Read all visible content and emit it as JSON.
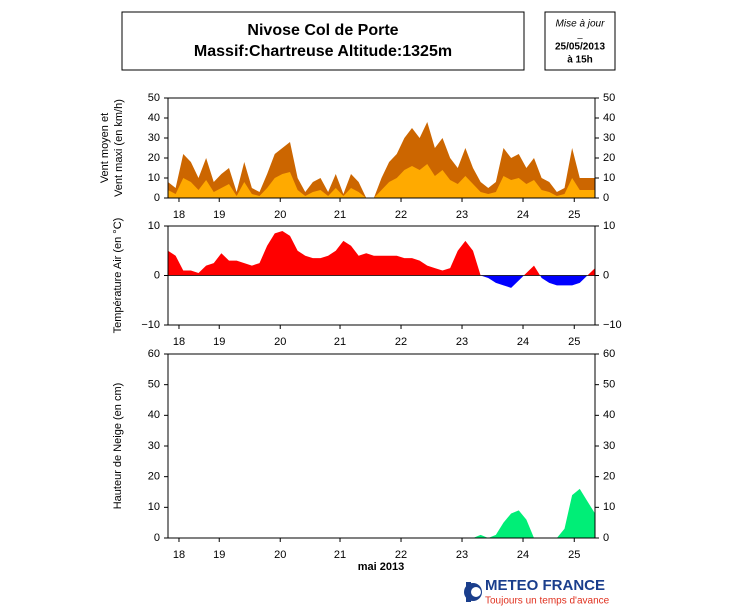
{
  "header": {
    "title": "Nivose Col de Porte",
    "subtitle": "Massif:Chartreuse Altitude:1325m",
    "update_label": "Mise à jour",
    "update_sep": "_",
    "update_date": "25/05/2013",
    "update_hour": "à 15h"
  },
  "x_label": "mai 2013",
  "footer": {
    "brand": "METEO FRANCE",
    "tagline": "Toujours un temps d'avance"
  },
  "chart_data": [
    {
      "type": "area",
      "y_label": [
        "Vent moyen et",
        "Vent maxi (en km/h)"
      ],
      "x": [
        0,
        0.125,
        0.25,
        0.375,
        0.5,
        0.625,
        0.75,
        0.875,
        1,
        1.125,
        1.25,
        1.375,
        1.5,
        1.625,
        1.75,
        1.875,
        2,
        2.125,
        2.25,
        2.375,
        2.5,
        2.625,
        2.75,
        2.875,
        3,
        3.125,
        3.25,
        3.375,
        3.5,
        3.625,
        3.75,
        3.875,
        4,
        4.125,
        4.25,
        4.375,
        4.5,
        4.625,
        4.75,
        4.875,
        5,
        5.125,
        5.25,
        5.375,
        5.5,
        5.625,
        5.75,
        5.875,
        6,
        6.125,
        6.25,
        6.375,
        6.5,
        6.625,
        6.75,
        6.875,
        7
      ],
      "xlim": [
        0,
        7
      ],
      "xticks": [
        {
          "value": 0.18,
          "label": "18"
        },
        {
          "value": 0.84,
          "label": "19"
        },
        {
          "value": 1.84,
          "label": "20"
        },
        {
          "value": 2.82,
          "label": "21"
        },
        {
          "value": 3.82,
          "label": "22"
        },
        {
          "value": 4.82,
          "label": "23"
        },
        {
          "value": 5.82,
          "label": "24"
        },
        {
          "value": 6.66,
          "label": "25"
        }
      ],
      "ylim": [
        0,
        50
      ],
      "yticks": [
        0,
        10,
        20,
        30,
        40,
        50
      ],
      "series": [
        {
          "name": "Vent maxi",
          "color": "#cc6600",
          "values": [
            8,
            5,
            22,
            18,
            10,
            20,
            8,
            12,
            15,
            3,
            18,
            5,
            3,
            12,
            22,
            25,
            28,
            10,
            3,
            8,
            10,
            3,
            12,
            2,
            12,
            8,
            0,
            0,
            10,
            18,
            22,
            30,
            35,
            30,
            38,
            25,
            30,
            20,
            15,
            25,
            15,
            8,
            5,
            8,
            25,
            20,
            22,
            15,
            20,
            10,
            8,
            3,
            5,
            25,
            10,
            10,
            10
          ]
        },
        {
          "name": "Vent moyen",
          "color": "#ffaa00",
          "values": [
            4,
            2,
            10,
            8,
            4,
            9,
            3,
            5,
            7,
            1,
            8,
            2,
            1,
            5,
            10,
            12,
            13,
            4,
            1,
            3,
            4,
            1,
            5,
            1,
            5,
            3,
            0,
            0,
            4,
            8,
            10,
            14,
            16,
            14,
            17,
            11,
            14,
            9,
            7,
            11,
            7,
            3,
            2,
            3,
            11,
            9,
            10,
            7,
            9,
            4,
            3,
            1,
            2,
            10,
            4,
            4,
            4
          ]
        }
      ]
    },
    {
      "type": "signed-area",
      "y_label": [
        "Température Air (en °C)"
      ],
      "x": [
        0,
        0.125,
        0.25,
        0.375,
        0.5,
        0.625,
        0.75,
        0.875,
        1,
        1.125,
        1.25,
        1.375,
        1.5,
        1.625,
        1.75,
        1.875,
        2,
        2.125,
        2.25,
        2.375,
        2.5,
        2.625,
        2.75,
        2.875,
        3,
        3.125,
        3.25,
        3.375,
        3.5,
        3.625,
        3.75,
        3.875,
        4,
        4.125,
        4.25,
        4.375,
        4.5,
        4.625,
        4.75,
        4.875,
        5,
        5.125,
        5.25,
        5.375,
        5.5,
        5.625,
        5.75,
        5.875,
        6,
        6.125,
        6.25,
        6.375,
        6.5,
        6.625,
        6.75,
        6.875,
        7
      ],
      "xlim": [
        0,
        7
      ],
      "xticks": [
        {
          "value": 0.18,
          "label": "18"
        },
        {
          "value": 0.84,
          "label": "19"
        },
        {
          "value": 1.84,
          "label": "20"
        },
        {
          "value": 2.82,
          "label": "21"
        },
        {
          "value": 3.82,
          "label": "22"
        },
        {
          "value": 4.82,
          "label": "23"
        },
        {
          "value": 5.82,
          "label": "24"
        },
        {
          "value": 6.66,
          "label": "25"
        }
      ],
      "ylim": [
        -10,
        10
      ],
      "yticks": [
        {
          "value": -10,
          "label": "−10"
        },
        0,
        10
      ],
      "series": [
        {
          "name": "Température",
          "color": "#ff0000",
          "negative_color": "#0000ff",
          "values": [
            5,
            4,
            1,
            1,
            0.5,
            2,
            2.5,
            4.5,
            3,
            3,
            2.5,
            2,
            2.5,
            6,
            8.5,
            9,
            8,
            5,
            4,
            3.5,
            3.5,
            4,
            5,
            7,
            6,
            4,
            4.5,
            4,
            4,
            4,
            4,
            3.5,
            3.5,
            3,
            2,
            1.5,
            1,
            1.5,
            5,
            7,
            5,
            0,
            -0.5,
            -1.5,
            -2,
            -2.5,
            -1,
            0.5,
            2,
            -0.5,
            -1.5,
            -2,
            -2,
            -2,
            -1.5,
            0,
            1.5
          ]
        }
      ]
    },
    {
      "type": "area",
      "y_label": [
        "Hauteur de Neige (en cm)"
      ],
      "x": [
        0,
        0.125,
        0.25,
        0.375,
        0.5,
        0.625,
        0.75,
        0.875,
        1,
        1.125,
        1.25,
        1.375,
        1.5,
        1.625,
        1.75,
        1.875,
        2,
        2.125,
        2.25,
        2.375,
        2.5,
        2.625,
        2.75,
        2.875,
        3,
        3.125,
        3.25,
        3.375,
        3.5,
        3.625,
        3.75,
        3.875,
        4,
        4.125,
        4.25,
        4.375,
        4.5,
        4.625,
        4.75,
        4.875,
        5,
        5.125,
        5.25,
        5.375,
        5.5,
        5.625,
        5.75,
        5.875,
        6,
        6.125,
        6.25,
        6.375,
        6.5,
        6.625,
        6.75,
        6.875,
        7
      ],
      "xlim": [
        0,
        7
      ],
      "xticks": [
        {
          "value": 0.18,
          "label": "18"
        },
        {
          "value": 0.84,
          "label": "19"
        },
        {
          "value": 1.84,
          "label": "20"
        },
        {
          "value": 2.82,
          "label": "21"
        },
        {
          "value": 3.82,
          "label": "22"
        },
        {
          "value": 4.82,
          "label": "23"
        },
        {
          "value": 5.82,
          "label": "24"
        },
        {
          "value": 6.66,
          "label": "25"
        }
      ],
      "ylim": [
        0,
        60
      ],
      "yticks": [
        0,
        10,
        20,
        30,
        40,
        50,
        60
      ],
      "series": [
        {
          "name": "Hauteur de neige",
          "color": "#00ee77",
          "values": [
            0,
            0,
            0,
            0,
            0,
            0,
            0,
            0,
            0,
            0,
            0,
            0,
            0,
            0,
            0,
            0,
            0,
            0,
            0,
            0,
            0,
            0,
            0,
            0,
            0,
            0,
            0,
            0,
            0,
            0,
            0,
            0,
            0,
            0,
            0,
            0,
            0,
            0,
            0,
            0,
            0,
            1,
            0,
            1,
            5,
            8,
            9,
            6,
            0,
            0,
            0,
            0,
            3,
            14,
            16,
            12,
            8
          ]
        }
      ]
    }
  ]
}
